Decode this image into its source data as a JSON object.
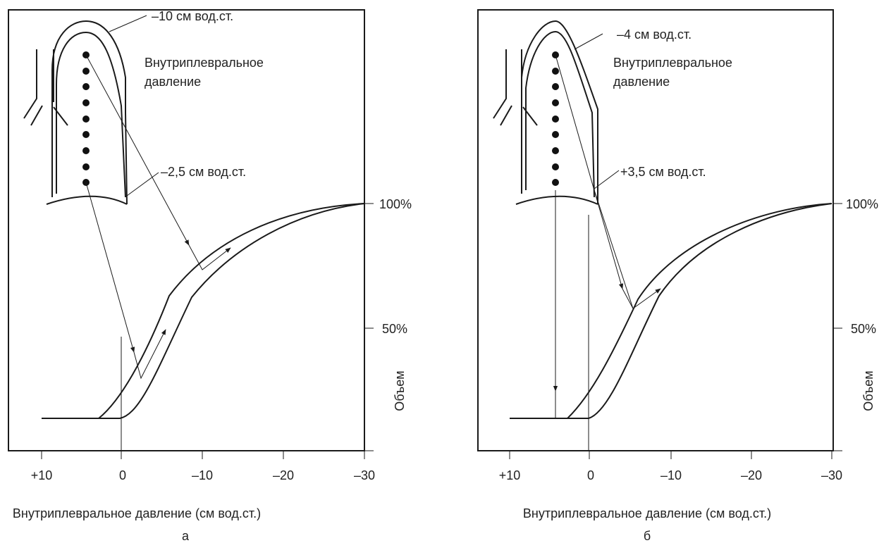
{
  "panels": [
    {
      "label": "а",
      "x_axis_title": "Внутриплевральное давление (см вод.ст.)",
      "x_ticks": [
        "+10",
        "0",
        "–10",
        "–20",
        "–30"
      ],
      "y_ticks": [
        "100%",
        "50%"
      ],
      "y_axis_title": "Объем",
      "annotations": [
        "–10 см вод.ст.",
        "Внутриплевральное",
        "давление",
        "–2,5 см вод.ст."
      ]
    },
    {
      "label": "б",
      "x_axis_title": "Внутриплевральное давление (см вод.ст.)",
      "x_ticks": [
        "+10",
        "0",
        "–10",
        "–20",
        "–30"
      ],
      "y_ticks": [
        "100%",
        "50%"
      ],
      "y_axis_title": "Объем",
      "annotations": [
        "–4 см вод.ст.",
        "Внутриплевральное",
        "давление",
        "+3,5 см вод.ст."
      ]
    }
  ]
}
